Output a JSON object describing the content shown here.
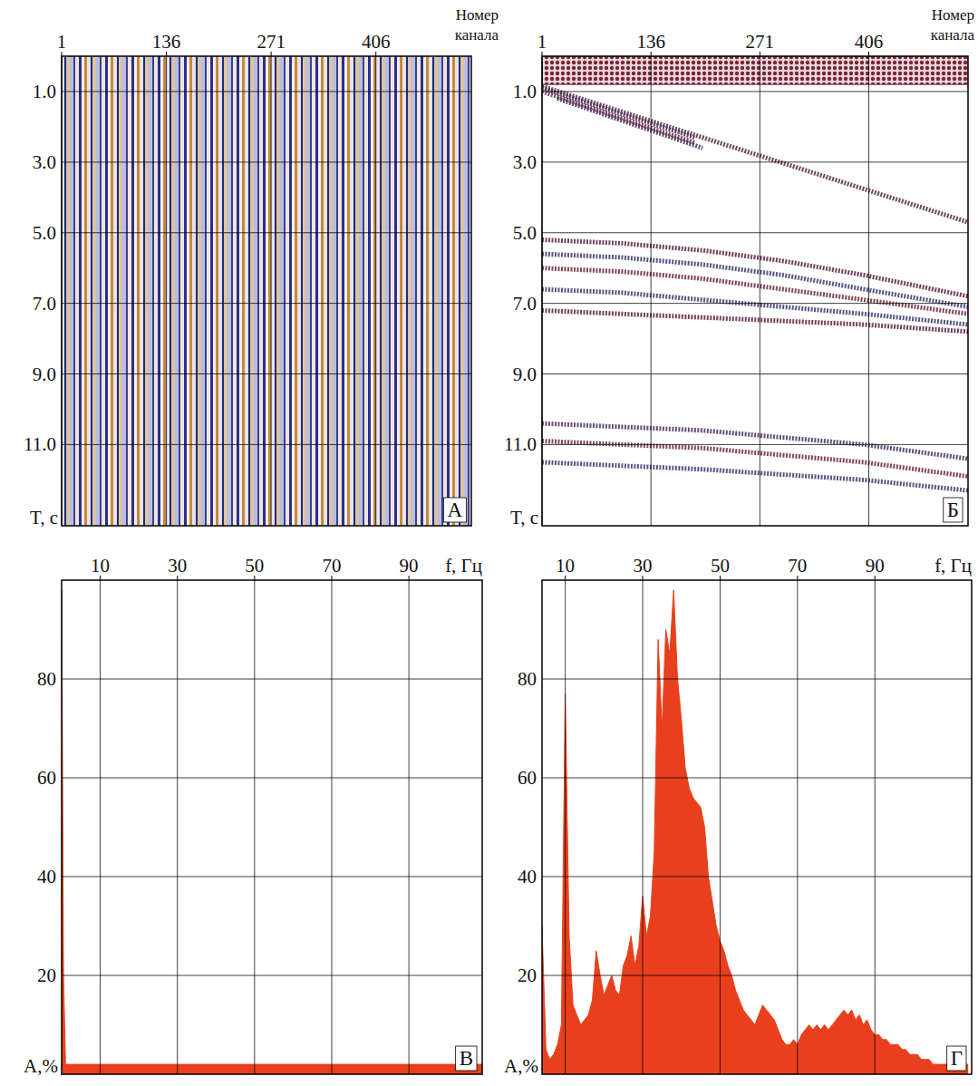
{
  "chart_data": [
    {
      "type": "seismogram",
      "letter": "А",
      "xlabel": "Номер канала",
      "ylabel": "T, с",
      "xlim": [
        1,
        529
      ],
      "ylim": [
        0,
        13.3
      ],
      "xticks": [
        1,
        136,
        271,
        406
      ],
      "yticks": [
        {
          "value": 1,
          "label": "1.0"
        },
        {
          "value": 3,
          "label": "3.0"
        },
        {
          "value": 5,
          "label": "5.0"
        },
        {
          "value": 7,
          "label": "7.0"
        },
        {
          "value": 9,
          "label": "9.0"
        },
        {
          "value": 11,
          "label": "11.0"
        }
      ],
      "grid": true
    },
    {
      "type": "seismogram",
      "letter": "Б",
      "xlabel": "Номер канала",
      "ylabel": "T, с",
      "xlim": [
        1,
        529
      ],
      "ylim": [
        0,
        13.3
      ],
      "xticks": [
        1,
        136,
        271,
        406
      ],
      "yticks": [
        {
          "value": 1,
          "label": "1.0"
        },
        {
          "value": 3,
          "label": "3.0"
        },
        {
          "value": 5,
          "label": "5.0"
        },
        {
          "value": 7,
          "label": "7.0"
        },
        {
          "value": 9,
          "label": "9.0"
        },
        {
          "value": 11,
          "label": "11.0"
        }
      ],
      "grid": true,
      "band": {
        "y": [
          0,
          0.8
        ],
        "color": "#7a2535"
      },
      "events": [
        {
          "color": "#5a2a45",
          "x": [
            1,
            529
          ],
          "y": [
            0.85,
            4.7
          ]
        },
        {
          "color": "#4a3060",
          "x": [
            1,
            190
          ],
          "y": [
            0.9,
            2.3
          ]
        },
        {
          "color": "#6a2a3a",
          "x": [
            1,
            190
          ],
          "y": [
            1.0,
            2.45
          ]
        },
        {
          "color": "#4a3060",
          "x": [
            20,
            200
          ],
          "y": [
            1.2,
            2.6
          ]
        },
        {
          "color": "#5a2040",
          "x": [
            1,
            100,
            200,
            300,
            400,
            529
          ],
          "y": [
            5.2,
            5.3,
            5.5,
            5.8,
            6.2,
            6.8
          ]
        },
        {
          "color": "#3a3a70",
          "x": [
            1,
            100,
            200,
            300,
            400,
            529
          ],
          "y": [
            5.6,
            5.7,
            5.9,
            6.2,
            6.6,
            7.1
          ]
        },
        {
          "color": "#6a2a3a",
          "x": [
            1,
            100,
            200,
            300,
            400,
            529
          ],
          "y": [
            6.0,
            6.1,
            6.3,
            6.6,
            6.9,
            7.3
          ]
        },
        {
          "color": "#3a3a70",
          "x": [
            1,
            100,
            200,
            300,
            400,
            529
          ],
          "y": [
            6.6,
            6.7,
            6.9,
            7.1,
            7.3,
            7.6
          ]
        },
        {
          "color": "#5a2040",
          "x": [
            1,
            100,
            200,
            300,
            400,
            529
          ],
          "y": [
            7.2,
            7.3,
            7.4,
            7.5,
            7.6,
            7.8
          ]
        },
        {
          "color": "#4a3060",
          "x": [
            1,
            200,
            400,
            529
          ],
          "y": [
            10.4,
            10.6,
            11.0,
            11.4
          ]
        },
        {
          "color": "#6a2a3a",
          "x": [
            1,
            200,
            400,
            529
          ],
          "y": [
            10.9,
            11.1,
            11.5,
            11.9
          ]
        },
        {
          "color": "#3a3a70",
          "x": [
            1,
            200,
            400,
            529
          ],
          "y": [
            11.5,
            11.7,
            12.0,
            12.3
          ]
        }
      ]
    },
    {
      "type": "area",
      "letter": "В",
      "xlabel": "f, Гц",
      "ylabel": "A,%",
      "xlim": [
        0,
        109
      ],
      "ylim": [
        0,
        100
      ],
      "xticks": [
        10,
        30,
        50,
        70,
        90
      ],
      "yticks": [
        20,
        40,
        60,
        80
      ],
      "grid": true,
      "color": "#e8401c",
      "x": [
        0,
        0.5,
        1,
        109
      ],
      "values": [
        98,
        20,
        2,
        2
      ]
    },
    {
      "type": "area",
      "letter": "Г",
      "xlabel": "f, Гц",
      "ylabel": "A,%",
      "xlim": [
        4,
        115
      ],
      "ylim": [
        0,
        100
      ],
      "xticks": [
        10,
        30,
        50,
        70,
        90
      ],
      "yticks": [
        20,
        40,
        60,
        80
      ],
      "grid": true,
      "color": "#e8401c",
      "x": [
        4,
        5,
        6,
        7,
        8,
        9,
        10,
        11,
        12,
        13,
        14,
        15,
        16,
        17,
        18,
        19,
        20,
        21,
        22,
        23,
        24,
        25,
        26,
        27,
        28,
        29,
        30,
        31,
        32,
        33,
        34,
        35,
        36,
        37,
        38,
        39,
        40,
        41,
        42,
        43,
        44,
        45,
        46,
        47,
        48,
        49,
        50,
        51,
        52,
        53,
        54,
        55,
        56,
        57,
        58,
        59,
        60,
        61,
        62,
        63,
        64,
        65,
        66,
        67,
        68,
        69,
        70,
        71,
        72,
        73,
        74,
        75,
        76,
        77,
        78,
        79,
        80,
        81,
        82,
        83,
        84,
        85,
        86,
        87,
        88,
        89,
        90,
        91,
        92,
        93,
        94,
        95,
        96,
        97,
        98,
        99,
        100,
        101,
        102,
        103,
        104,
        105,
        106,
        107,
        108,
        109,
        110,
        111,
        112,
        113,
        114
      ],
      "values": [
        30,
        5,
        3,
        4,
        6,
        10,
        77,
        28,
        14,
        12,
        10,
        11,
        12,
        15,
        25,
        20,
        16,
        18,
        20,
        17,
        16,
        22,
        24,
        28,
        22,
        26,
        36,
        28,
        32,
        45,
        88,
        70,
        90,
        85,
        98,
        80,
        72,
        62,
        58,
        56,
        55,
        54,
        50,
        40,
        35,
        30,
        27,
        25,
        22,
        20,
        17,
        15,
        13,
        12,
        11,
        10,
        12,
        14,
        13,
        12,
        11,
        9,
        7,
        6,
        6,
        7,
        6,
        8,
        9,
        10,
        9,
        10,
        9,
        10,
        9,
        10,
        11,
        12,
        13,
        12,
        13,
        11,
        12,
        10,
        11,
        9,
        8,
        8,
        7,
        7,
        6,
        6,
        6,
        5,
        5,
        4,
        4,
        4,
        3,
        3,
        3,
        2,
        2,
        2,
        2,
        2,
        2,
        2,
        2,
        2,
        2
      ]
    }
  ]
}
